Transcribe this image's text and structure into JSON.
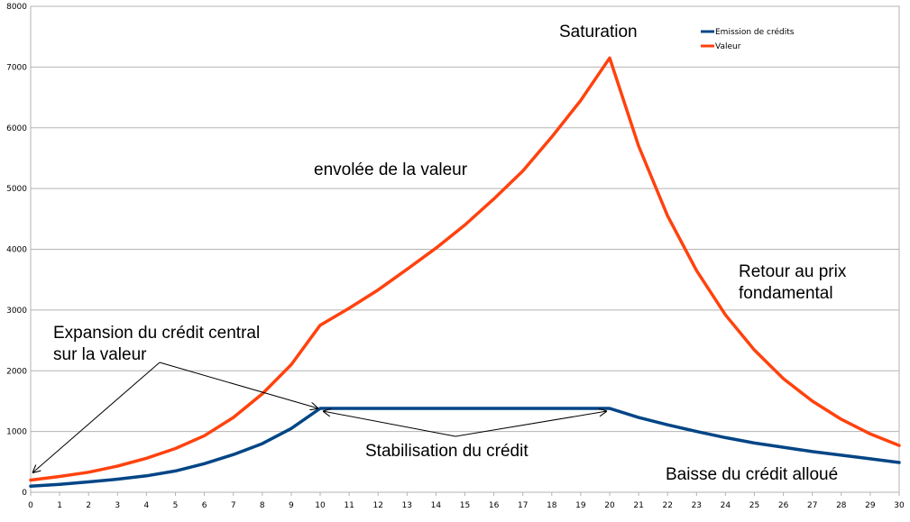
{
  "chart_data": {
    "type": "line",
    "x": [
      0,
      1,
      2,
      3,
      4,
      5,
      6,
      7,
      8,
      9,
      10,
      11,
      12,
      13,
      14,
      15,
      16,
      17,
      18,
      19,
      20,
      21,
      22,
      23,
      24,
      25,
      26,
      27,
      28,
      29,
      30
    ],
    "xlim": [
      0,
      30
    ],
    "ylim": [
      0,
      8000
    ],
    "yticks": [
      0,
      1000,
      2000,
      3000,
      4000,
      5000,
      6000,
      7000,
      8000
    ],
    "grid": true,
    "legend_position": "top-right",
    "series": [
      {
        "name": "Emission de crédits",
        "color": "#004586",
        "values": [
          100,
          130,
          170,
          215,
          270,
          350,
          470,
          620,
          800,
          1050,
          1380,
          1380,
          1380,
          1380,
          1380,
          1380,
          1380,
          1380,
          1380,
          1380,
          1380,
          1230,
          1110,
          1000,
          900,
          810,
          740,
          670,
          610,
          550,
          490
        ]
      },
      {
        "name": "Valeur",
        "color": "#ff420e",
        "values": [
          200,
          260,
          330,
          430,
          560,
          720,
          930,
          1230,
          1620,
          2100,
          2750,
          3030,
          3330,
          3670,
          4020,
          4400,
          4830,
          5290,
          5850,
          6450,
          7150,
          5700,
          4550,
          3650,
          2920,
          2340,
          1870,
          1500,
          1200,
          960,
          770
        ]
      }
    ],
    "annotations": {
      "saturation": "Saturation",
      "envolee": "envolée de la valeur",
      "retour_line1": "Retour au prix",
      "retour_line2": "fondamental",
      "expansion_line1": "Expansion du crédit central",
      "expansion_line2": "sur la valeur",
      "stabilisation": "Stabilisation du crédit",
      "baisse": "Baisse du crédit alloué"
    }
  }
}
